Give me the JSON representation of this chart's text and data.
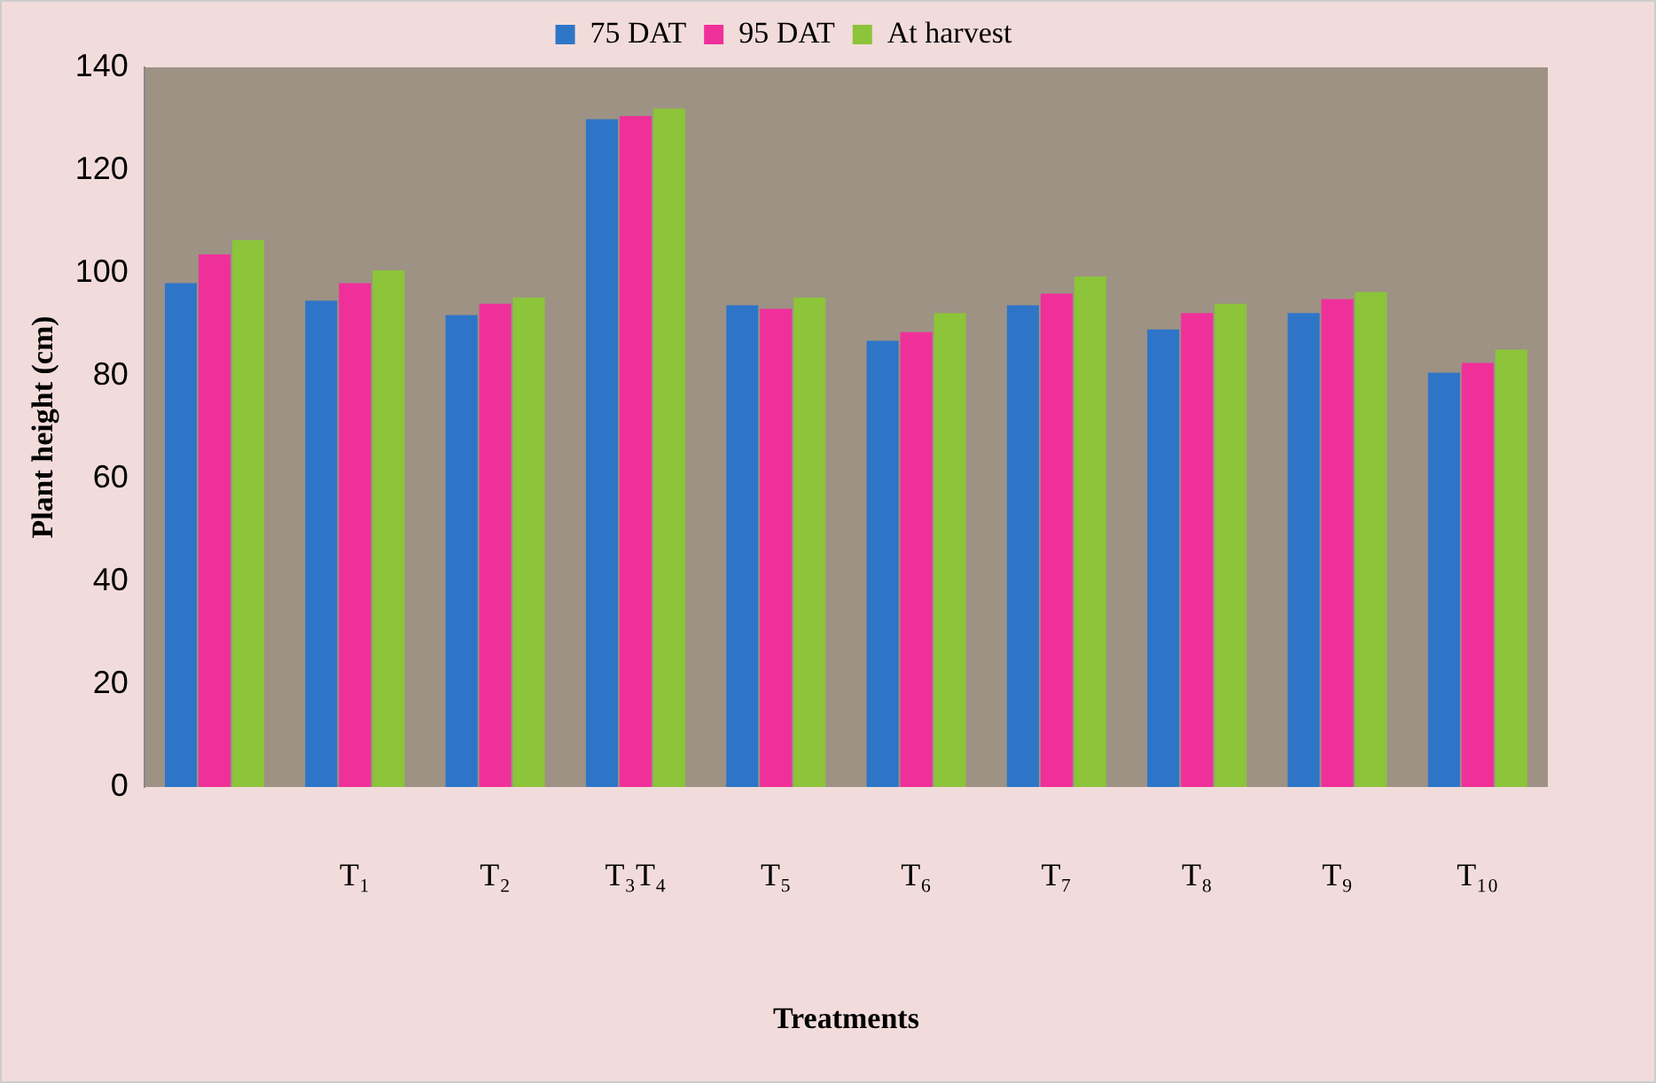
{
  "chart_data": {
    "type": "bar",
    "xlabel": "Treatments",
    "ylabel": "Plant height (cm)",
    "categories": [
      null,
      "T₁",
      "T₂",
      "T₃T₄",
      "T₅",
      "T₆",
      "T₇",
      "T₈",
      "T₉",
      "T₁₀"
    ],
    "series": [
      {
        "name": "75 DAT",
        "color": "#2e75c8",
        "values": [
          98,
          94.6,
          91.8,
          129.9,
          93.7,
          86.8,
          93.7,
          89,
          92.2,
          80.6
        ]
      },
      {
        "name": "95 DAT",
        "color": "#f0309a",
        "values": [
          103.6,
          98,
          94,
          130.5,
          93,
          88.5,
          96,
          92.2,
          94.9,
          82.5
        ]
      },
      {
        "name": "At harvest",
        "color": "#8cc43a",
        "values": [
          106.4,
          100.5,
          95.2,
          132,
          95.2,
          92.2,
          99.3,
          94,
          96.3,
          85.1
        ]
      }
    ],
    "ylim": [
      0,
      140
    ],
    "yticks": [
      0,
      20,
      40,
      60,
      80,
      100,
      120,
      140
    ],
    "grid": false,
    "legend": "top"
  }
}
